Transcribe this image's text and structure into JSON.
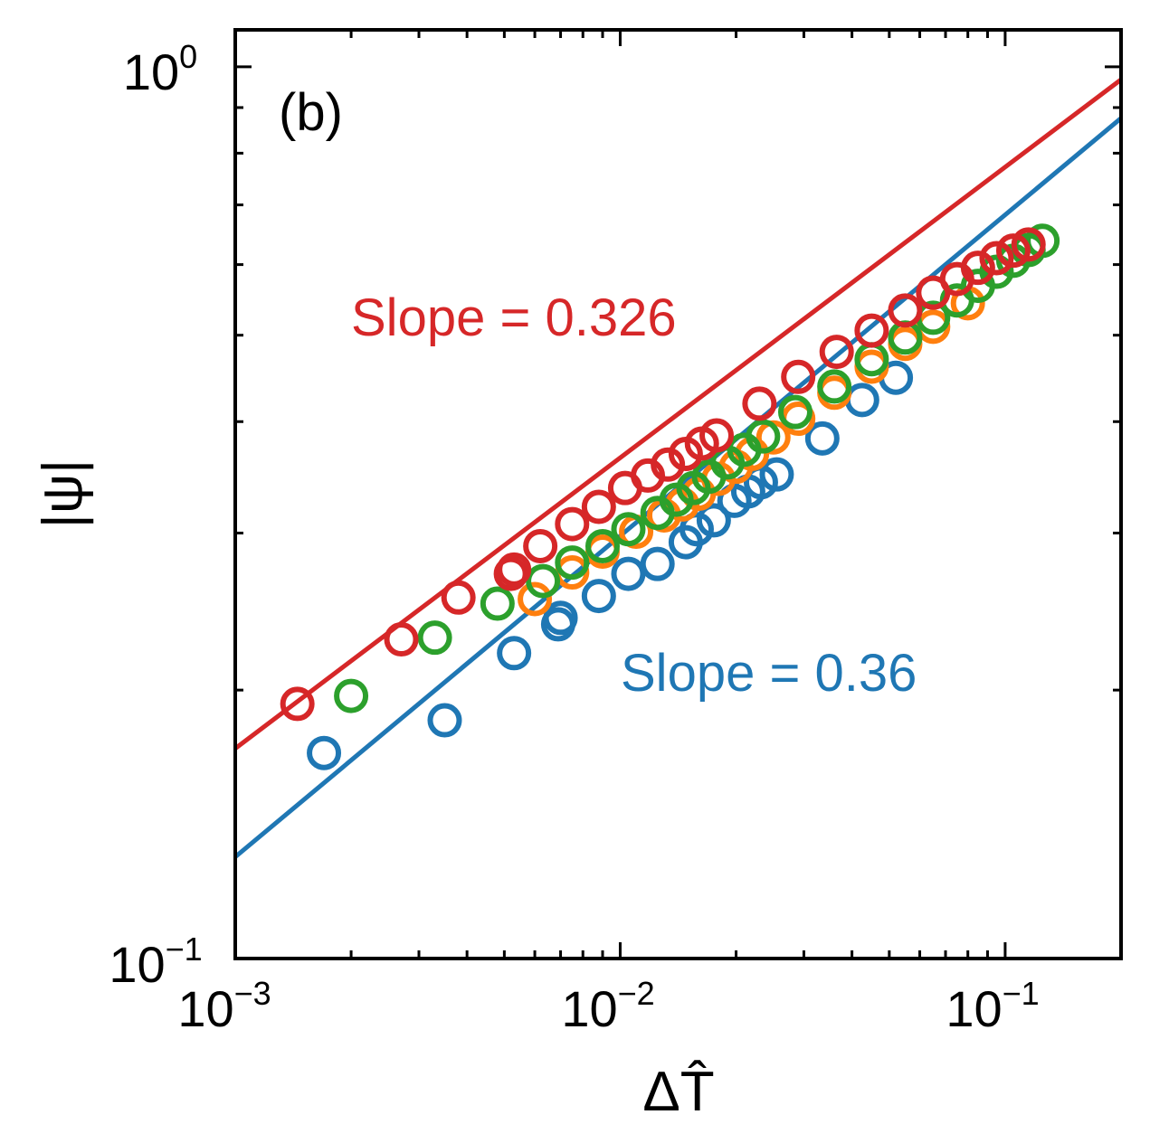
{
  "chart_data": {
    "type": "scatter",
    "panel_label": "(b)",
    "xlabel": "ΔT̂",
    "ylabel": "|ψ|",
    "xscale": "log",
    "yscale": "log",
    "xlim": [
      0.001,
      0.2
    ],
    "ylim": [
      0.1,
      1.1
    ],
    "x_ticks": [
      {
        "value": 0.001,
        "base": "10",
        "exp": "−3"
      },
      {
        "value": 0.01,
        "base": "10",
        "exp": "−2"
      },
      {
        "value": 0.1,
        "base": "10",
        "exp": "−1"
      }
    ],
    "y_ticks": [
      {
        "value": 0.1,
        "base": "10",
        "exp": "−1"
      },
      {
        "value": 1.0,
        "base": "10",
        "exp": "0"
      }
    ],
    "colors": {
      "blue": "#1f77b4",
      "orange": "#ff7f0e",
      "green": "#2ca02c",
      "red": "#d62728"
    },
    "fits": [
      {
        "name": "red fit",
        "color": "#d62728",
        "slope": 0.326,
        "y_at_x0": 0.172,
        "x_range": [
          0.001,
          0.2
        ]
      },
      {
        "name": "blue fit",
        "color": "#1f77b4",
        "slope": 0.36,
        "y_at_x0": 0.13,
        "x_range": [
          0.001,
          0.2
        ]
      }
    ],
    "annotations": [
      {
        "text": "Slope = 0.326",
        "color": "#d62728"
      },
      {
        "text": "Slope = 0.36",
        "color": "#1f77b4"
      }
    ],
    "series": [
      {
        "name": "blue",
        "color": "#1f77b4",
        "x": [
          0.0017,
          0.0035,
          0.0053,
          0.0069,
          0.007,
          0.0088,
          0.0105,
          0.0125,
          0.0148,
          0.0158,
          0.0175,
          0.0198,
          0.0215,
          0.0232,
          0.0255,
          0.0335,
          0.0425,
          0.052
        ],
        "y": [
          0.17,
          0.185,
          0.22,
          0.237,
          0.241,
          0.255,
          0.27,
          0.277,
          0.293,
          0.303,
          0.31,
          0.326,
          0.334,
          0.342,
          0.349,
          0.383,
          0.423,
          0.448
        ]
      },
      {
        "name": "orange",
        "color": "#ff7f0e",
        "x": [
          0.006,
          0.0075,
          0.009,
          0.011,
          0.013,
          0.0145,
          0.016,
          0.018,
          0.02,
          0.022,
          0.025,
          0.029,
          0.036,
          0.045,
          0.055,
          0.065,
          0.08
        ],
        "y": [
          0.253,
          0.271,
          0.286,
          0.301,
          0.314,
          0.323,
          0.332,
          0.345,
          0.356,
          0.368,
          0.384,
          0.403,
          0.431,
          0.461,
          0.489,
          0.511,
          0.543
        ]
      },
      {
        "name": "green",
        "color": "#2ca02c",
        "x": [
          0.002,
          0.0033,
          0.0048,
          0.0063,
          0.0075,
          0.009,
          0.0105,
          0.0125,
          0.014,
          0.0155,
          0.017,
          0.019,
          0.021,
          0.0235,
          0.0285,
          0.036,
          0.045,
          0.055,
          0.065,
          0.075,
          0.085,
          0.095,
          0.105,
          0.115,
          0.125
        ],
        "y": [
          0.197,
          0.229,
          0.25,
          0.265,
          0.278,
          0.29,
          0.303,
          0.316,
          0.327,
          0.337,
          0.347,
          0.36,
          0.372,
          0.385,
          0.41,
          0.438,
          0.47,
          0.497,
          0.523,
          0.547,
          0.568,
          0.589,
          0.606,
          0.623,
          0.638
        ]
      },
      {
        "name": "red",
        "color": "#d62728",
        "x": [
          0.00145,
          0.0027,
          0.0038,
          0.0052,
          0.0053,
          0.0062,
          0.0075,
          0.0088,
          0.0103,
          0.0118,
          0.0133,
          0.0148,
          0.0163,
          0.0178,
          0.023,
          0.029,
          0.0365,
          0.045,
          0.055,
          0.065,
          0.075,
          0.085,
          0.095,
          0.105,
          0.115
        ],
        "y": [
          0.193,
          0.228,
          0.254,
          0.27,
          0.273,
          0.29,
          0.307,
          0.321,
          0.337,
          0.348,
          0.358,
          0.368,
          0.378,
          0.386,
          0.419,
          0.449,
          0.479,
          0.506,
          0.533,
          0.558,
          0.578,
          0.595,
          0.61,
          0.622,
          0.632
        ]
      }
    ]
  }
}
